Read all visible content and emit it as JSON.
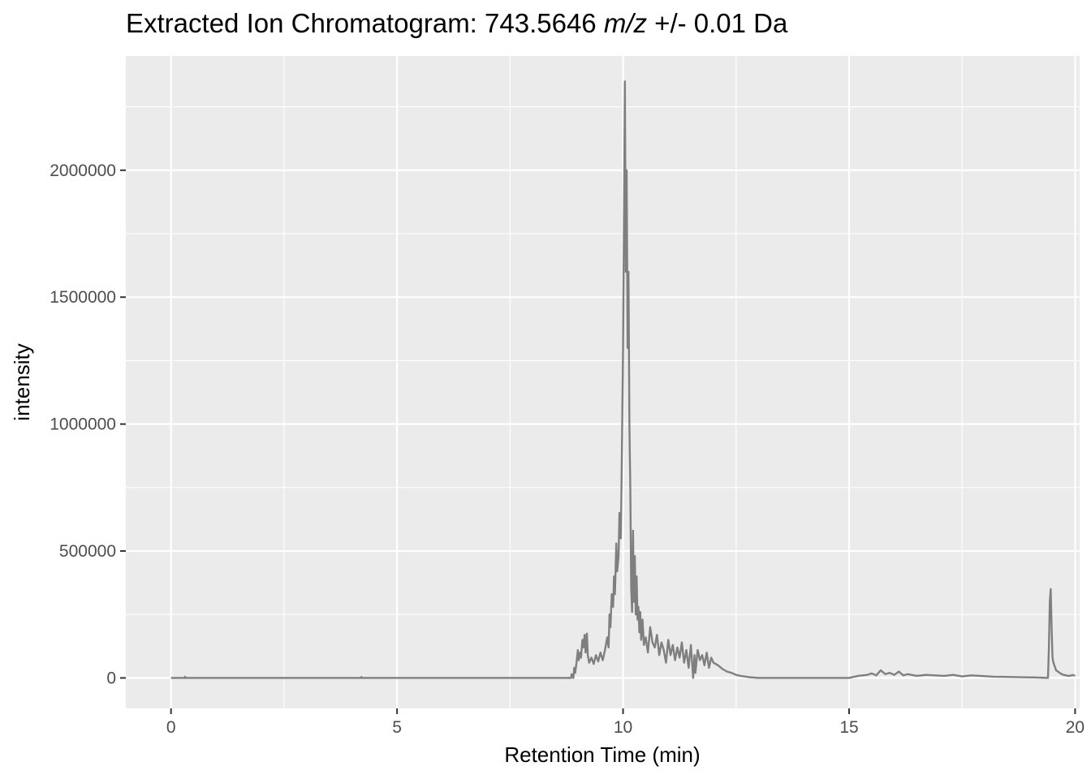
{
  "chart_data": {
    "type": "line",
    "title_prefix": "Extracted Ion Chromatogram: 743.5646 ",
    "title_italic": "m/z",
    "title_suffix": " +/- 0.01 Da",
    "xlabel": "Retention Time (min)",
    "ylabel": "intensity",
    "xlim": [
      -1,
      20.1
    ],
    "ylim": [
      -120000,
      2450000
    ],
    "x_ticks": [
      0,
      5,
      10,
      15,
      20
    ],
    "x_tick_labels": [
      "0",
      "5",
      "10",
      "15",
      "20"
    ],
    "y_ticks": [
      0,
      500000,
      1000000,
      1500000,
      2000000
    ],
    "y_tick_labels": [
      "0",
      "500000",
      "1000000",
      "1500000",
      "2000000"
    ],
    "grid": true,
    "colors": {
      "panel_background": "#ebebeb",
      "grid": "#ffffff",
      "line": "#7f7f7f"
    },
    "series": [
      {
        "x": [
          0,
          0.3,
          0.31,
          0.32,
          4.2,
          4.21,
          4.22,
          8.8,
          8.85,
          8.86,
          8.9,
          8.92,
          8.94,
          8.97,
          9.0,
          9.02,
          9.05,
          9.07,
          9.1,
          9.12,
          9.15,
          9.17,
          9.2,
          9.22,
          9.25,
          9.3,
          9.35,
          9.4,
          9.45,
          9.5,
          9.55,
          9.6,
          9.65,
          9.68,
          9.7,
          9.72,
          9.75,
          9.78,
          9.8,
          9.82,
          9.85,
          9.87,
          9.9,
          9.92,
          9.95,
          9.97,
          10.0,
          10.02,
          10.04,
          10.06,
          10.08,
          10.1,
          10.12,
          10.14,
          10.16,
          10.18,
          10.2,
          10.22,
          10.24,
          10.26,
          10.28,
          10.3,
          10.32,
          10.34,
          10.36,
          10.38,
          10.4,
          10.43,
          10.46,
          10.5,
          10.55,
          10.6,
          10.65,
          10.7,
          10.75,
          10.8,
          10.85,
          10.9,
          10.95,
          11.0,
          11.05,
          11.1,
          11.15,
          11.2,
          11.25,
          11.3,
          11.35,
          11.4,
          11.45,
          11.5,
          11.55,
          11.58,
          11.6,
          11.65,
          11.7,
          11.75,
          11.8,
          11.85,
          11.9,
          11.95,
          12.0,
          12.1,
          12.2,
          12.3,
          12.4,
          12.5,
          12.6,
          12.8,
          13.0,
          13.5,
          14.0,
          14.5,
          15.0,
          15.2,
          15.4,
          15.5,
          15.6,
          15.7,
          15.8,
          15.9,
          16.0,
          16.1,
          16.2,
          16.3,
          16.5,
          16.7,
          16.9,
          17.1,
          17.3,
          17.5,
          17.7,
          17.9,
          18.2,
          18.5,
          18.8,
          19.1,
          19.4,
          19.42,
          19.44,
          19.46,
          19.48,
          19.5,
          19.52,
          19.55,
          19.58,
          19.62,
          19.66,
          19.7,
          19.75,
          19.8,
          19.85,
          19.9,
          19.95,
          20.0
        ],
        "y": [
          0,
          0,
          5000,
          0,
          0,
          4000,
          0,
          0,
          0,
          15000,
          0,
          40000,
          20000,
          60000,
          110000,
          70000,
          100000,
          80000,
          150000,
          120000,
          170000,
          100000,
          175000,
          90000,
          60000,
          80000,
          55000,
          90000,
          65000,
          100000,
          70000,
          110000,
          160000,
          120000,
          250000,
          200000,
          330000,
          280000,
          400000,
          330000,
          530000,
          420000,
          480000,
          650000,
          550000,
          820000,
          1300000,
          1800000,
          2350000,
          1600000,
          2000000,
          1300000,
          1600000,
          1000000,
          750000,
          350000,
          260000,
          580000,
          300000,
          480000,
          250000,
          400000,
          230000,
          280000,
          180000,
          260000,
          150000,
          230000,
          130000,
          160000,
          100000,
          200000,
          140000,
          120000,
          170000,
          90000,
          140000,
          110000,
          60000,
          150000,
          90000,
          130000,
          70000,
          120000,
          80000,
          140000,
          60000,
          110000,
          40000,
          130000,
          0,
          90000,
          20000,
          110000,
          70000,
          90000,
          50000,
          100000,
          40000,
          80000,
          60000,
          50000,
          35000,
          25000,
          20000,
          12000,
          8000,
          3000,
          0,
          0,
          0,
          0,
          0,
          8000,
          12000,
          18000,
          10000,
          30000,
          15000,
          20000,
          12000,
          25000,
          10000,
          15000,
          8000,
          12000,
          10000,
          8000,
          12000,
          6000,
          10000,
          8000,
          5000,
          4000,
          3000,
          2000,
          0,
          120000,
          300000,
          350000,
          200000,
          80000,
          60000,
          45000,
          30000,
          25000,
          20000,
          15000,
          12000,
          10000,
          8000,
          9000,
          12000,
          8000
        ]
      }
    ]
  }
}
